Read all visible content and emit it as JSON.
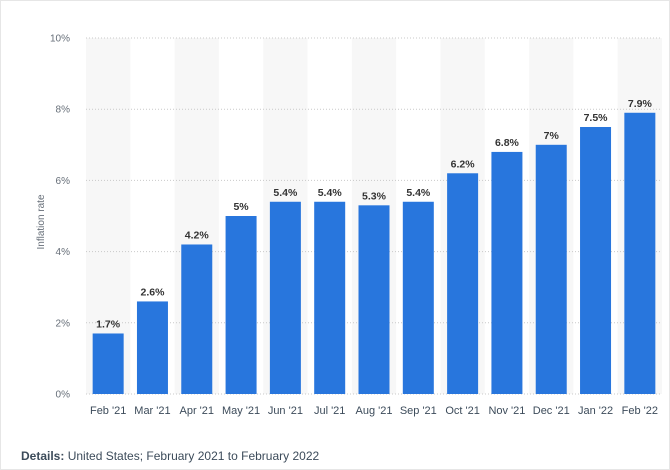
{
  "chart_data": {
    "type": "bar",
    "title": "",
    "xlabel": "",
    "ylabel": "Inflation rate",
    "ylim": [
      0,
      10
    ],
    "yticks": [
      "0%",
      "2%",
      "4%",
      "6%",
      "8%",
      "10%"
    ],
    "ytick_values": [
      0,
      2,
      4,
      6,
      8,
      10
    ],
    "grid": true,
    "bar_color": "#2876dd",
    "categories": [
      "Feb '21",
      "Mar '21",
      "Apr '21",
      "May '21",
      "Jun '21",
      "Jul '21",
      "Aug '21",
      "Sep '21",
      "Oct '21",
      "Nov '21",
      "Dec '21",
      "Jan '22",
      "Feb '22"
    ],
    "values": [
      1.7,
      2.6,
      4.2,
      5,
      5.4,
      5.4,
      5.3,
      5.4,
      6.2,
      6.8,
      7,
      7.5,
      7.9
    ],
    "value_labels": [
      "1.7%",
      "2.6%",
      "4.2%",
      "5%",
      "5.4%",
      "5.4%",
      "5.3%",
      "5.4%",
      "6.2%",
      "6.8%",
      "7%",
      "7.5%",
      "7.9%"
    ]
  },
  "details": {
    "label": "Details:",
    "text": " United States; February 2021 to February 2022"
  }
}
